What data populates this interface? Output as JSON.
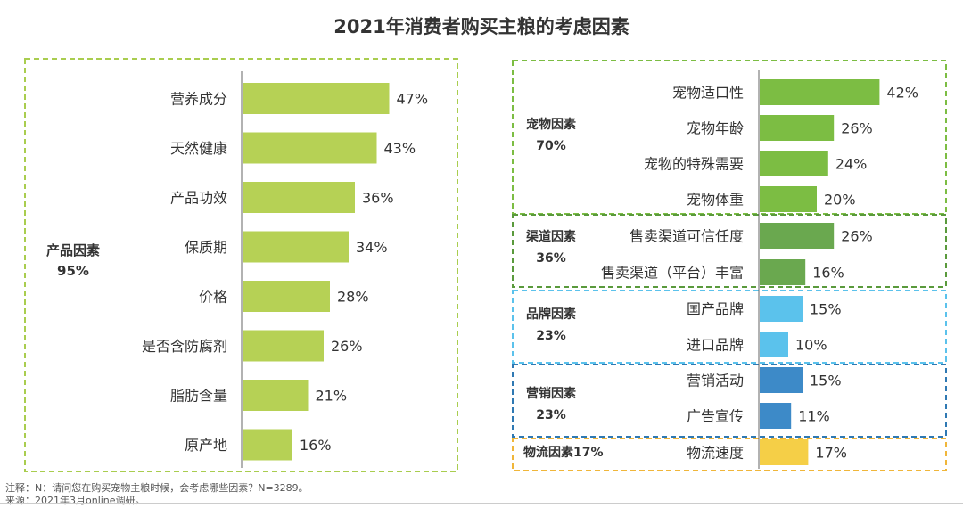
{
  "title": "2021年消费者购买主粮的考虑因素",
  "left_panel": {
    "group_label": "产品因素",
    "group_value": "95%",
    "bar_color": "#b6d155",
    "border_color": "#a9cd4f"
  },
  "right_groups": [
    {
      "label": "宠物因素",
      "value": "70%",
      "bar_color": "#7cbd43",
      "border_color": "#7cbd43"
    },
    {
      "label": "渠道因素",
      "value": "36%",
      "bar_color": "#6aa84f",
      "border_color": "#5a9a3c"
    },
    {
      "label": "品牌因素",
      "value": "23%",
      "bar_color": "#5bc2ec",
      "border_color": "#5bc2ec"
    },
    {
      "label": "营销因素",
      "value": "23%",
      "bar_color": "#3d8ac8",
      "border_color": "#2f79b3"
    },
    {
      "label": "物流因素17%",
      "value": "",
      "bar_color": "#f5cf47",
      "border_color": "#f0b63a"
    }
  ],
  "chart_data": [
    {
      "type": "bar",
      "title": "2021年消费者购买主粮的考虑因素",
      "orientation": "horizontal",
      "categories": [
        "营养成分",
        "天然健康",
        "产品功效",
        "保质期",
        "价格",
        "是否含防腐剂",
        "脂肪含量",
        "原产地"
      ],
      "values": [
        47,
        43,
        36,
        34,
        28,
        26,
        21,
        16
      ],
      "value_labels": [
        "47%",
        "43%",
        "36%",
        "34%",
        "28%",
        "26%",
        "21%",
        "16%"
      ],
      "xlim": [
        0,
        50
      ],
      "grid": false
    },
    {
      "type": "bar",
      "orientation": "horizontal",
      "categories": [
        "宠物适口性",
        "宠物年龄",
        "宠物的特殊需要",
        "宠物体重",
        "售卖渠道可信任度",
        "售卖渠道（平台）丰富",
        "国产品牌",
        "进口品牌",
        "营销活动",
        "广告宣传",
        "物流速度"
      ],
      "groups": [
        "宠物因素",
        "宠物因素",
        "宠物因素",
        "宠物因素",
        "渠道因素",
        "渠道因素",
        "品牌因素",
        "品牌因素",
        "营销因素",
        "营销因素",
        "物流因素17%"
      ],
      "values": [
        42,
        26,
        24,
        20,
        26,
        16,
        15,
        10,
        15,
        11,
        17
      ],
      "value_labels": [
        "42%",
        "26%",
        "24%",
        "20%",
        "26%",
        "16%",
        "15%",
        "10%",
        "15%",
        "11%",
        "17%"
      ],
      "colors": [
        "#7cbd43",
        "#7cbd43",
        "#7cbd43",
        "#7cbd43",
        "#6aa84f",
        "#6aa84f",
        "#5bc2ec",
        "#5bc2ec",
        "#3d8ac8",
        "#3d8ac8",
        "#f5cf47"
      ],
      "xlim": [
        0,
        50
      ],
      "grid": false
    }
  ],
  "notes": {
    "line1": "注释：N：请问您在购买宠物主粮时候，会考虑哪些因素？N=3289。",
    "line2": "来源：2021年3月online调研。"
  }
}
